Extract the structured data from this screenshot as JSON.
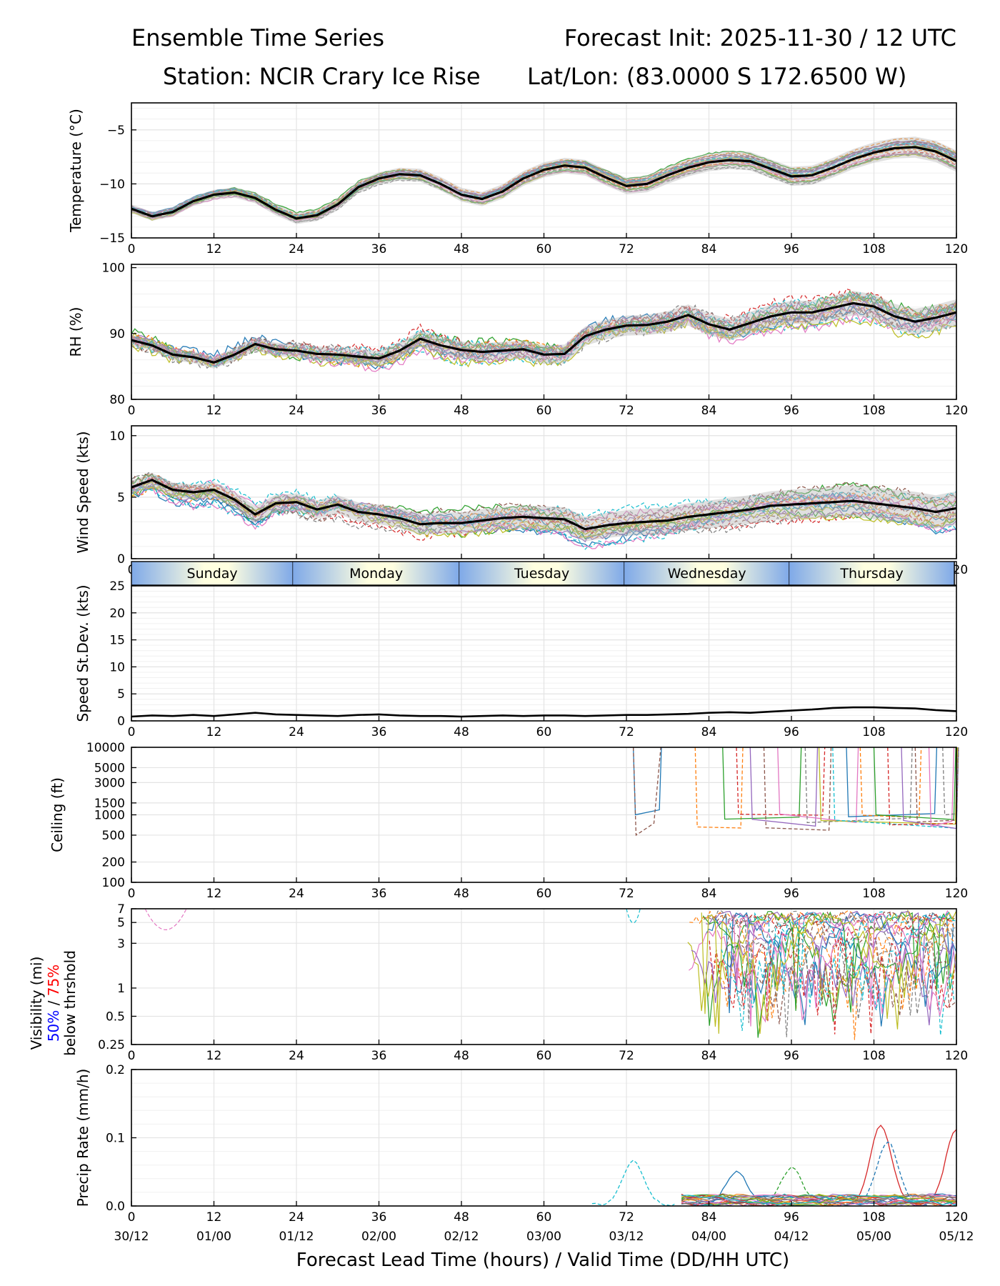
{
  "header": {
    "title_left": "Ensemble Time Series",
    "title_right": "Forecast Init: 2025-11-30 / 12 UTC",
    "station": "Station: NCIR Crary Ice Rise",
    "latlon": "Lat/Lon: (83.0000 S 172.6500 W)"
  },
  "xaxis": {
    "label": "Forecast Lead Time (hours) / Valid Time (DD/HH UTC)",
    "ticks": [
      0,
      12,
      24,
      36,
      48,
      60,
      72,
      84,
      96,
      108,
      120
    ],
    "valid_times": [
      "30/12",
      "01/00",
      "01/12",
      "02/00",
      "02/12",
      "03/00",
      "03/12",
      "04/00",
      "04/12",
      "05/00",
      "05/12"
    ],
    "range": [
      0,
      120
    ]
  },
  "day_strip": {
    "days": [
      "Sunday",
      "Monday",
      "Tuesday",
      "Wednesday",
      "Thursday"
    ],
    "boundaries_hours": [
      23.5,
      47.7,
      71.7,
      95.7,
      119.7
    ]
  },
  "member_colors": [
    "#1f77b4",
    "#ff7f0e",
    "#2ca02c",
    "#d62728",
    "#9467bd",
    "#8c564b",
    "#e377c2",
    "#7f7f7f",
    "#bcbd22",
    "#17becf"
  ],
  "visibility_legend": {
    "line1": "Visibility (mi)",
    "p50": "50%",
    "sep": " / ",
    "p75": "75%",
    "line3": "below thrshold",
    "p50_color": "#0000ff",
    "p75_color": "#ff0000"
  },
  "chart_data": [
    {
      "type": "line",
      "id": "temperature",
      "ylabel": "Temperature (°C)",
      "ylim": [
        -15,
        -2.5
      ],
      "yticks": [
        -15,
        -10,
        -5
      ],
      "xlabel": "",
      "mean": {
        "x": [
          0,
          3,
          6,
          9,
          12,
          15,
          18,
          21,
          24,
          27,
          30,
          33,
          36,
          39,
          42,
          45,
          48,
          51,
          54,
          57,
          60,
          63,
          66,
          69,
          72,
          75,
          78,
          81,
          84,
          87,
          90,
          93,
          96,
          99,
          102,
          105,
          108,
          111,
          114,
          117,
          120
        ],
        "y": [
          -12.3,
          -13.0,
          -12.6,
          -11.6,
          -11.0,
          -10.8,
          -11.3,
          -12.4,
          -13.2,
          -12.9,
          -11.9,
          -10.3,
          -9.5,
          -9.1,
          -9.2,
          -10.0,
          -11.0,
          -11.4,
          -10.7,
          -9.5,
          -8.7,
          -8.3,
          -8.5,
          -9.4,
          -10.2,
          -10.0,
          -9.2,
          -8.5,
          -8.0,
          -7.8,
          -7.9,
          -8.6,
          -9.3,
          -9.2,
          -8.5,
          -7.7,
          -7.1,
          -6.7,
          -6.6,
          -7.0,
          -7.9
        ]
      },
      "spread": 0.8,
      "member_count": 20
    },
    {
      "type": "line",
      "id": "rh",
      "ylabel": "RH (%)",
      "ylim": [
        80,
        100.5
      ],
      "yticks": [
        80,
        90,
        100
      ],
      "xlabel": "",
      "mean": {
        "x": [
          0,
          3,
          6,
          9,
          12,
          15,
          18,
          21,
          24,
          27,
          30,
          33,
          36,
          39,
          42,
          45,
          48,
          51,
          54,
          57,
          60,
          63,
          66,
          69,
          72,
          75,
          78,
          81,
          84,
          87,
          90,
          93,
          96,
          99,
          102,
          105,
          108,
          111,
          114,
          117,
          120
        ],
        "y": [
          89,
          88.2,
          86.8,
          86.4,
          85.6,
          86.8,
          88.4,
          87.6,
          87.4,
          86.9,
          86.8,
          86.5,
          86.2,
          87.4,
          89.2,
          88.2,
          87.5,
          87.2,
          87.4,
          87.6,
          86.8,
          86.9,
          89.6,
          90.6,
          91.2,
          91.3,
          91.8,
          92.8,
          91.4,
          90.6,
          91.6,
          92.6,
          93.2,
          93.2,
          93.9,
          94.6,
          94.1,
          92.6,
          91.8,
          92.4,
          93.2
        ]
      },
      "spread": 1.6,
      "member_count": 20
    },
    {
      "type": "line",
      "id": "wind_speed",
      "ylabel": "Wind Speed (kts)",
      "ylim": [
        0,
        10.8
      ],
      "yticks": [
        0,
        5,
        10
      ],
      "xlabel": "",
      "mean": {
        "x": [
          0,
          3,
          6,
          9,
          12,
          15,
          18,
          21,
          24,
          27,
          30,
          33,
          36,
          39,
          42,
          45,
          48,
          51,
          54,
          57,
          60,
          63,
          66,
          69,
          72,
          75,
          78,
          81,
          84,
          87,
          90,
          93,
          96,
          99,
          102,
          105,
          108,
          111,
          114,
          117,
          120
        ],
        "y": [
          5.8,
          6.4,
          5.6,
          5.4,
          5.6,
          4.8,
          3.6,
          4.5,
          4.6,
          4.0,
          4.4,
          3.8,
          3.6,
          3.3,
          2.8,
          2.9,
          2.9,
          3.1,
          3.3,
          3.4,
          3.3,
          3.2,
          2.4,
          2.7,
          2.9,
          3.0,
          3.1,
          3.4,
          3.6,
          3.8,
          4.0,
          4.3,
          4.4,
          4.5,
          4.6,
          4.7,
          4.5,
          4.3,
          4.1,
          3.8,
          4.1
        ]
      },
      "spread": 1.1,
      "member_count": 20
    },
    {
      "type": "line",
      "id": "speed_stdev",
      "ylabel": "Speed St.Dev. (kts)",
      "ylim": [
        0,
        25
      ],
      "yticks": [
        0,
        5,
        10,
        15,
        20,
        25
      ],
      "xlabel": "",
      "series": [
        {
          "name": "st.dev",
          "x": [
            0,
            3,
            6,
            9,
            12,
            15,
            18,
            21,
            24,
            27,
            30,
            33,
            36,
            39,
            42,
            45,
            48,
            51,
            54,
            57,
            60,
            63,
            66,
            69,
            72,
            75,
            78,
            81,
            84,
            87,
            90,
            93,
            96,
            99,
            102,
            105,
            108,
            111,
            114,
            117,
            120
          ],
          "y": [
            0.8,
            1.0,
            0.9,
            1.1,
            0.9,
            1.2,
            1.5,
            1.2,
            1.1,
            1.0,
            0.9,
            1.1,
            1.2,
            1.0,
            0.9,
            0.9,
            0.8,
            0.9,
            1.0,
            0.9,
            1.0,
            1.0,
            0.9,
            1.0,
            1.1,
            1.1,
            1.2,
            1.3,
            1.5,
            1.6,
            1.5,
            1.7,
            1.9,
            2.1,
            2.4,
            2.5,
            2.5,
            2.4,
            2.3,
            2.0,
            1.8
          ]
        }
      ]
    },
    {
      "type": "line",
      "id": "ceiling",
      "ylabel": "Ceiling (ft)",
      "scale": "log",
      "ylim": [
        100,
        10000
      ],
      "yticks": [
        100,
        200,
        500,
        1000,
        1500,
        3000,
        5000,
        10000
      ],
      "xlabel": "",
      "events_start_hours": [
        73,
        82,
        86,
        88,
        90,
        92,
        94,
        98,
        100,
        102,
        104,
        106,
        108,
        110,
        112,
        114,
        116,
        118
      ],
      "typical_low_ceiling_ft": [
        500,
        1000
      ],
      "member_count": 20
    },
    {
      "type": "line",
      "id": "visibility",
      "ylabel": "Visibility (mi)",
      "scale": "log",
      "ylim": [
        0.25,
        7
      ],
      "yticks": [
        0.25,
        0.5,
        1,
        3,
        5,
        7
      ],
      "xlabel": "",
      "member_count": 20
    },
    {
      "type": "line",
      "id": "precip_rate",
      "ylabel": "Precip Rate (mm/h)",
      "ylim": [
        0,
        0.2
      ],
      "yticks": [
        0.0,
        0.1,
        0.2
      ],
      "xlabel": "Forecast Lead Time (hours) / Valid Time (DD/HH UTC)",
      "peaks": [
        {
          "x": 73,
          "y": 0.064,
          "color": "#17becf"
        },
        {
          "x": 88,
          "y": 0.048,
          "color": "#1f77b4"
        },
        {
          "x": 96,
          "y": 0.054,
          "color": "#2ca02c"
        },
        {
          "x": 109,
          "y": 0.115,
          "color": "#d62728"
        },
        {
          "x": 110,
          "y": 0.092,
          "color": "#1f77b4"
        },
        {
          "x": 120,
          "y": 0.11,
          "color": "#d62728"
        }
      ],
      "member_count": 20
    }
  ]
}
